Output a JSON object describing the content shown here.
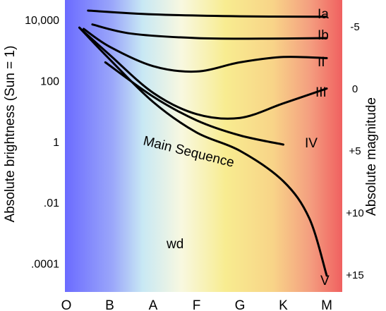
{
  "chart_data": {
    "type": "line",
    "title": "",
    "ylabel_left": "Absolute brightness (Sun = 1)",
    "ylabel_right": "Absolute magnitude",
    "x_categories": [
      "O",
      "B",
      "A",
      "F",
      "G",
      "K",
      "M"
    ],
    "y_left_scale": "log",
    "y_left_ticks": [
      {
        "value": 10000,
        "label": "10,000"
      },
      {
        "value": 100,
        "label": "100"
      },
      {
        "value": 1,
        "label": "1"
      },
      {
        "value": 0.01,
        "label": ".01"
      },
      {
        "value": 0.0001,
        "label": ".0001"
      }
    ],
    "y_right_ticks": [
      {
        "value": -5,
        "label": "-5"
      },
      {
        "value": 0,
        "label": "0"
      },
      {
        "value": 5,
        "label": "+5"
      },
      {
        "value": 10,
        "label": "+10"
      },
      {
        "value": 15,
        "label": "+15"
      }
    ],
    "background_gradient": [
      "#6b6bff",
      "#c8e8f4",
      "#f8f8e0",
      "#f8ec90",
      "#f8d488",
      "#f4a080",
      "#f06060"
    ],
    "series": [
      {
        "name": "Ia",
        "points": [
          [
            0.5,
            20000
          ],
          [
            2,
            15000
          ],
          [
            4,
            13000
          ],
          [
            6,
            12500
          ]
        ]
      },
      {
        "name": "Ib",
        "points": [
          [
            0.6,
            7000
          ],
          [
            1.5,
            3500
          ],
          [
            3,
            2500
          ],
          [
            4.5,
            2400
          ],
          [
            6,
            2500
          ]
        ]
      },
      {
        "name": "II",
        "points": [
          [
            0.4,
            5000
          ],
          [
            1,
            1300
          ],
          [
            2,
            300
          ],
          [
            3,
            200
          ],
          [
            4,
            400
          ],
          [
            5,
            600
          ],
          [
            6,
            550
          ]
        ]
      },
      {
        "name": "III",
        "points": [
          [
            0.3,
            5500
          ],
          [
            1,
            700
          ],
          [
            2,
            40
          ],
          [
            3,
            8
          ],
          [
            4,
            6
          ],
          [
            5,
            18
          ],
          [
            6,
            55
          ]
        ]
      },
      {
        "name": "IV",
        "points": [
          [
            0.9,
            400
          ],
          [
            2,
            30
          ],
          [
            3,
            5
          ],
          [
            4,
            1.6
          ],
          [
            5,
            0.8
          ]
        ]
      },
      {
        "name": "Main Sequence",
        "labeled_as": "V",
        "points": [
          [
            0.3,
            5500
          ],
          [
            1,
            500
          ],
          [
            2,
            20
          ],
          [
            3,
            2
          ],
          [
            4,
            0.5
          ],
          [
            5,
            0.05
          ],
          [
            5.6,
            0.003
          ],
          [
            6,
            4e-05
          ]
        ]
      }
    ],
    "annotations": [
      {
        "text": "Main Sequence"
      },
      {
        "text": "wd"
      }
    ],
    "grid": false,
    "legend": "none"
  }
}
